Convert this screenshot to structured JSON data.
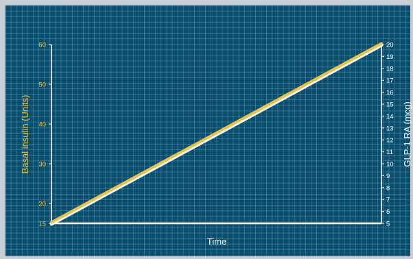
{
  "colors": {
    "background": "#c9ced4",
    "panel": "#0e4e6c",
    "grid": "#3f8dad",
    "axis": "#ffffff",
    "left_axis_text": "#e8c24a",
    "right_axis_text": "#ffffff",
    "series_basal": "#e8c24a",
    "series_glp1": "#ffffff"
  },
  "chart_data": {
    "type": "line",
    "title": "",
    "xlabel": "Time",
    "ylabel_left": "Basal insulin (Units)",
    "ylabel_right": "GLP-1 RA (mcg)",
    "ylim_left": [
      15,
      60
    ],
    "ylim_right": [
      5,
      20
    ],
    "left_ticks": [
      "15",
      "20",
      "30",
      "40",
      "50",
      "60"
    ],
    "right_ticks": [
      "5",
      "6",
      "7",
      "8",
      "9",
      "10",
      "11",
      "12",
      "13",
      "14",
      "15",
      "16",
      "17",
      "18",
      "19",
      "20"
    ],
    "grid": true,
    "series": [
      {
        "axis": "left",
        "color": "#e8c24a",
        "x": [
          0,
          1
        ],
        "y": [
          15,
          60
        ]
      },
      {
        "axis": "right",
        "color": "#ffffff",
        "x": [
          0,
          1
        ],
        "y": [
          5,
          20
        ]
      }
    ]
  }
}
